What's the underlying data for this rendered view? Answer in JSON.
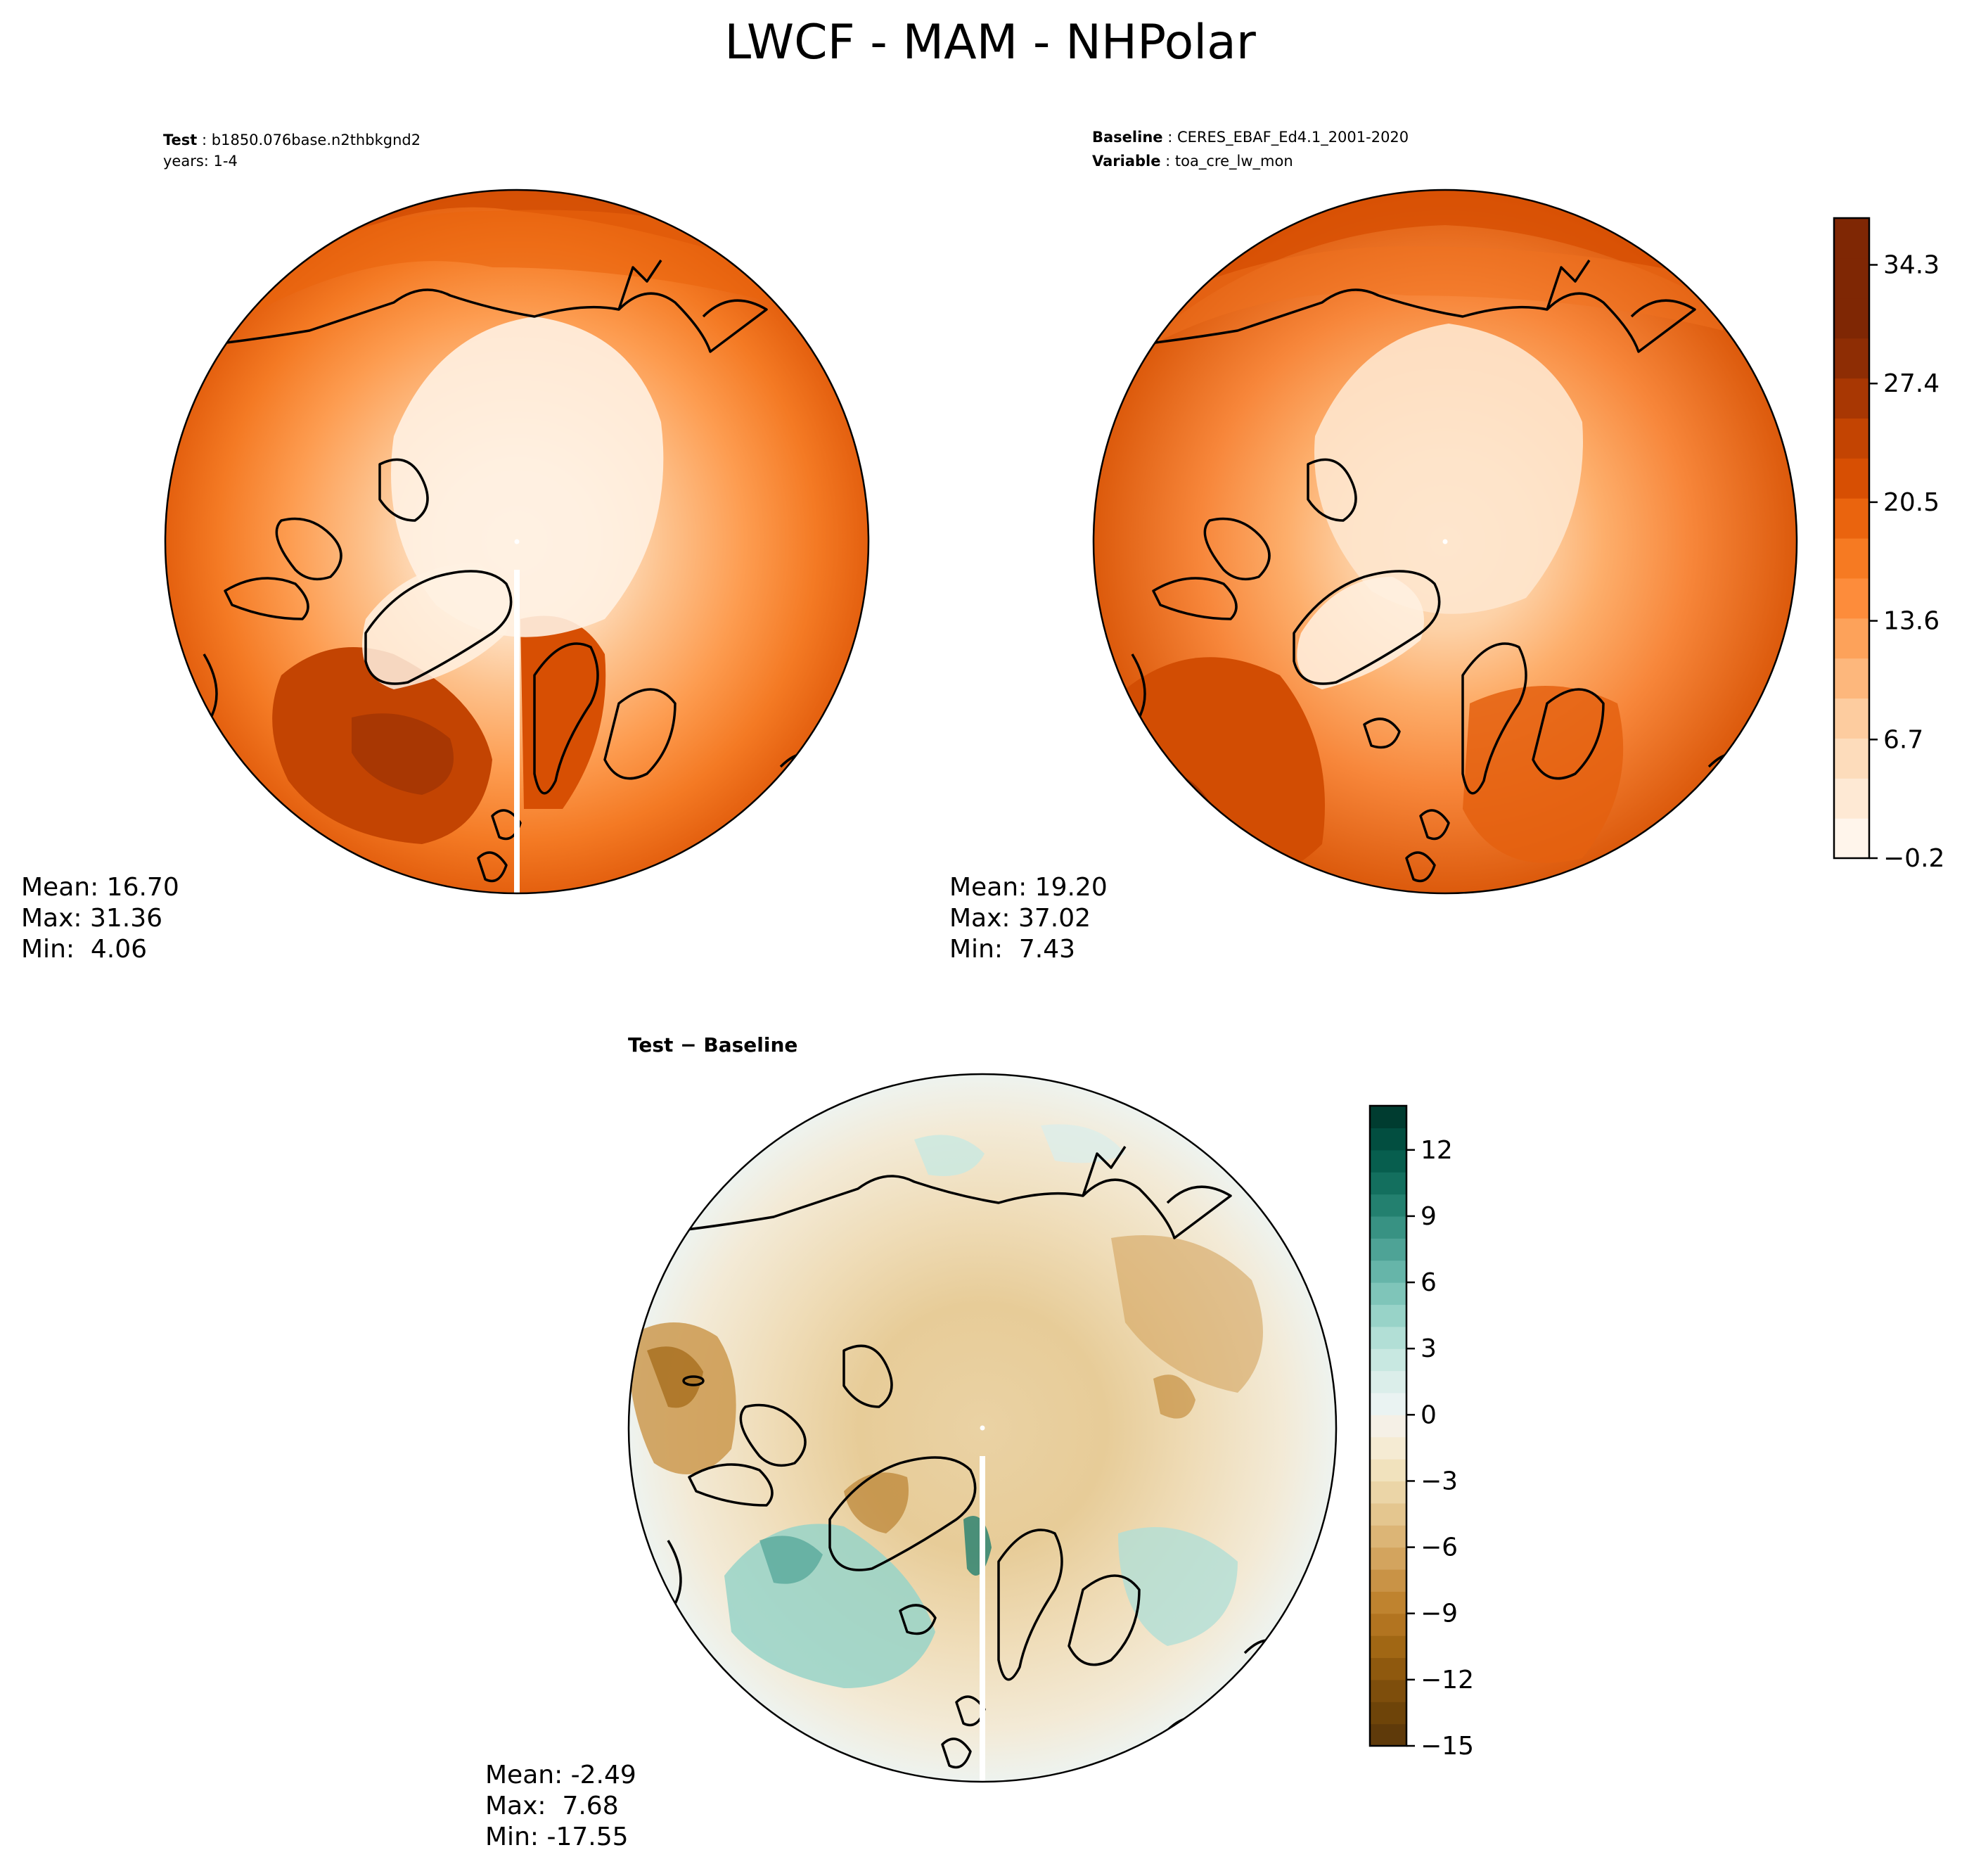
{
  "chart_data": {
    "type": "heatmap",
    "title": "LWCF - MAM - NHPolar",
    "panels": [
      {
        "id": "test",
        "header": [
          {
            "bold": "Test",
            "text": "b1850.076base.n2thbkgnd2"
          },
          {
            "bold": "",
            "text": "years: 1-4"
          }
        ],
        "stats": {
          "mean": "Mean: 16.70",
          "max": "Max: 31.36",
          "min": "Min:  4.06"
        },
        "colormap": "Oranges"
      },
      {
        "id": "baseline",
        "header": [
          {
            "bold": "Baseline",
            "text": "CERES_EBAF_Ed4.1_2001-2020"
          },
          {
            "bold": "Variable",
            "text": "toa_cre_lw_mon"
          }
        ],
        "stats": {
          "mean": "Mean: 19.20",
          "max": "Max: 37.02",
          "min": "Min:  7.43"
        },
        "colormap": "Oranges"
      },
      {
        "id": "diff",
        "header": [
          {
            "bold": "Test − Baseline",
            "text": ""
          }
        ],
        "stats": {
          "mean": "Mean: -2.49",
          "max": "Max:  7.68",
          "min": "Min: -17.55"
        },
        "colormap": "BrBG"
      }
    ],
    "colorbars": [
      {
        "id": "main",
        "range": [
          -0.2,
          37.02
        ],
        "levels": 16,
        "ticks": [
          -0.2,
          6.7,
          13.6,
          20.5,
          27.4,
          34.3
        ],
        "tick_labels": [
          "−0.2",
          "6.7",
          "13.6",
          "20.5",
          "27.4",
          "34.3"
        ],
        "colors": [
          "#fff5eb",
          "#fee9d4",
          "#fddcbb",
          "#fdcc9f",
          "#fdb77c",
          "#fda25a",
          "#fd8c3b",
          "#f67a22",
          "#ea640e",
          "#d74f03",
          "#c34402",
          "#a83703",
          "#8e2d04",
          "#7f2704",
          "#7f2704",
          "#7f2704"
        ]
      },
      {
        "id": "diff",
        "range": [
          -15,
          14
        ],
        "levels": 29,
        "ticks": [
          -15,
          -12,
          -9,
          -6,
          -3,
          0,
          3,
          6,
          9,
          12
        ],
        "tick_labels": [
          "−15",
          "−12",
          "−9",
          "−6",
          "−3",
          "0",
          "3",
          "6",
          "9",
          "12"
        ],
        "colors": [
          "#5f3a0a",
          "#6e4409",
          "#7e4e0c",
          "#8f590e",
          "#a16714",
          "#b27420",
          "#bf832f",
          "#c99346",
          "#d3a45e",
          "#dcb576",
          "#e4c68f",
          "#ebd5a7",
          "#f1e2bd",
          "#f5ebd3",
          "#f5f0e6",
          "#eaf3f2",
          "#dbeeea",
          "#c8e8e1",
          "#b2dfd6",
          "#98d3c8",
          "#7fc5b9",
          "#66b5a9",
          "#4ea396",
          "#389283",
          "#23806f",
          "#136f5e",
          "#075e4e",
          "#024e40",
          "#003c30"
        ]
      }
    ],
    "map_features": {
      "south_of_pole_gap": true,
      "north_pole_marker": true
    }
  }
}
